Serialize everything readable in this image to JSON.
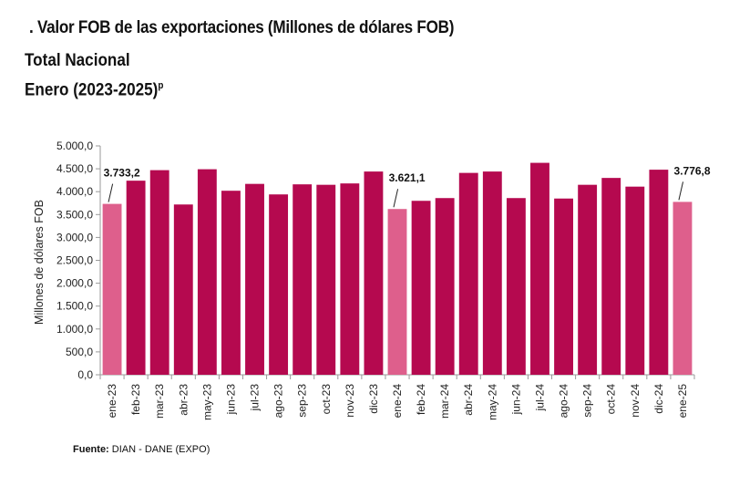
{
  "title": ". Valor FOB de las exportaciones (Millones de dólares FOB)",
  "subtitle_line1": "Total Nacional",
  "subtitle_line2": "Enero (2023-2025)",
  "subtitle_sup": "p",
  "footer_label": "Fuente:",
  "footer_text": " DIAN - DANE (EXPO)",
  "chart_data": {
    "type": "bar",
    "title": "",
    "xlabel": "",
    "ylabel": "Millones de dólares FOB",
    "ylim": [
      0,
      5000
    ],
    "yticks": [
      "0,0",
      "500,0",
      "1.000,0",
      "1.500,0",
      "2.000,0",
      "2.500,0",
      "3.000,0",
      "3.500,0",
      "4.000,0",
      "4.500,0",
      "5.000,0"
    ],
    "categories": [
      "ene-23",
      "feb-23",
      "mar-23",
      "abr-23",
      "may-23",
      "jun-23",
      "jul-23",
      "ago-23",
      "sep-23",
      "oct-23",
      "nov-23",
      "dic-23",
      "ene-24",
      "feb-24",
      "mar-24",
      "abr-24",
      "may-24",
      "jun-24",
      "jul-24",
      "ago-24",
      "sep-24",
      "oct-24",
      "nov-24",
      "dic-24",
      "ene-25"
    ],
    "values": [
      3733.2,
      4240,
      4470,
      3720,
      4490,
      4020,
      4170,
      3940,
      4160,
      4150,
      4180,
      4440,
      3621.1,
      3800,
      3860,
      4410,
      4440,
      3860,
      4630,
      3850,
      4150,
      4300,
      4110,
      4480,
      3776.8
    ],
    "highlight": [
      0,
      12,
      24
    ],
    "data_labels": [
      {
        "index": 0,
        "text": "3.733,2"
      },
      {
        "index": 12,
        "text": "3.621,1"
      },
      {
        "index": 24,
        "text": "3.776,8"
      }
    ],
    "grid": false,
    "legend": "none",
    "colors": {
      "bar": "#b5094f",
      "highlight": "#de5f8c",
      "axis": "#9a9a9a"
    }
  }
}
